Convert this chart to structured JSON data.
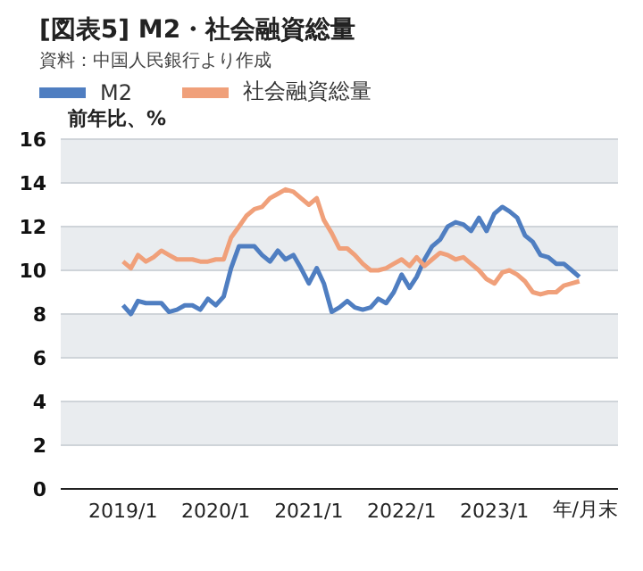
{
  "chart_data": {
    "type": "line",
    "title": "[図表5] M2・社会融資総量",
    "annotations": [
      "資料：中国人民銀行より作成"
    ],
    "ylabel": "前年比、%",
    "xlabel": "年/月末",
    "x": [
      "2019-01",
      "2019-02",
      "2019-03",
      "2019-04",
      "2019-05",
      "2019-06",
      "2019-07",
      "2019-08",
      "2019-09",
      "2019-10",
      "2019-11",
      "2019-12",
      "2020-01",
      "2020-02",
      "2020-03",
      "2020-04",
      "2020-05",
      "2020-06",
      "2020-07",
      "2020-08",
      "2020-09",
      "2020-10",
      "2020-11",
      "2020-12",
      "2021-01",
      "2021-02",
      "2021-03",
      "2021-04",
      "2021-05",
      "2021-06",
      "2021-07",
      "2021-08",
      "2021-09",
      "2021-10",
      "2021-11",
      "2021-12",
      "2022-01",
      "2022-02",
      "2022-03",
      "2022-04",
      "2022-05",
      "2022-06",
      "2022-07",
      "2022-08",
      "2022-09",
      "2022-10",
      "2022-11",
      "2022-12",
      "2023-01",
      "2023-02",
      "2023-03",
      "2023-04",
      "2023-05",
      "2023-06",
      "2023-07",
      "2023-08",
      "2023-09",
      "2023-10",
      "2023-11",
      "2023-12"
    ],
    "series": [
      {
        "name": "M2",
        "color": "#4f7ec1",
        "values": [
          8.4,
          8.0,
          8.6,
          8.5,
          8.5,
          8.5,
          8.1,
          8.2,
          8.4,
          8.4,
          8.2,
          8.7,
          8.4,
          8.8,
          10.1,
          11.1,
          11.1,
          11.1,
          10.7,
          10.4,
          10.9,
          10.5,
          10.7,
          10.1,
          9.4,
          10.1,
          9.4,
          8.1,
          8.3,
          8.6,
          8.3,
          8.2,
          8.3,
          8.7,
          8.5,
          9.0,
          9.8,
          9.2,
          9.7,
          10.5,
          11.1,
          11.4,
          12.0,
          12.2,
          12.1,
          11.8,
          12.4,
          11.8,
          12.6,
          12.9,
          12.7,
          12.4,
          11.6,
          11.3,
          10.7,
          10.6,
          10.3,
          10.3,
          10.0,
          9.7
        ]
      },
      {
        "name": "社会融資総量",
        "color": "#f0a07a",
        "values": [
          10.4,
          10.1,
          10.7,
          10.4,
          10.6,
          10.9,
          10.7,
          10.5,
          10.5,
          10.5,
          10.4,
          10.4,
          10.5,
          10.5,
          11.5,
          12.0,
          12.5,
          12.8,
          12.9,
          13.3,
          13.5,
          13.7,
          13.6,
          13.3,
          13.0,
          13.3,
          12.3,
          11.7,
          11.0,
          11.0,
          10.7,
          10.3,
          10.0,
          10.0,
          10.1,
          10.3,
          10.5,
          10.2,
          10.6,
          10.2,
          10.5,
          10.8,
          10.7,
          10.5,
          10.6,
          10.3,
          10.0,
          9.6,
          9.4,
          9.9,
          10.0,
          9.8,
          9.5,
          9.0,
          8.9,
          9.0,
          9.0,
          9.3,
          9.4,
          9.5
        ]
      }
    ],
    "xlim": [
      "2018-05",
      "2024-05"
    ],
    "xticks": [
      {
        "value": "2019-01",
        "label": "2019/1"
      },
      {
        "value": "2020-01",
        "label": "2020/1"
      },
      {
        "value": "2021-01",
        "label": "2021/1"
      },
      {
        "value": "2022-01",
        "label": "2022/1"
      },
      {
        "value": "2023-01",
        "label": "2023/1"
      }
    ],
    "ylim": [
      0,
      16
    ],
    "yticks": [
      0,
      2,
      4,
      6,
      8,
      10,
      12,
      14,
      16
    ],
    "grid": "y",
    "legend": "top left",
    "marker": "none",
    "line_style": "solid"
  }
}
